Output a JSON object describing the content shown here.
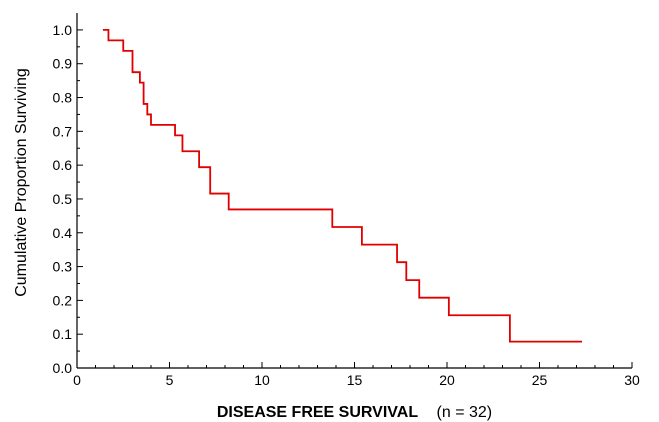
{
  "chart_data": {
    "type": "line",
    "step": true,
    "title": "",
    "xlabel": "DISEASE FREE SURVIVAL",
    "xlabel_note": "(n = 32)",
    "ylabel": "Cumulative Proportion Surviving",
    "xlim": [
      0,
      30
    ],
    "ylim": [
      0,
      1.05
    ],
    "xticks": [
      0,
      5,
      10,
      15,
      20,
      25,
      30
    ],
    "xtick_labels": [
      "0",
      "5",
      "10",
      "15",
      "20",
      "25",
      "30"
    ],
    "yticks": [
      0.0,
      0.1,
      0.2,
      0.3,
      0.4,
      0.5,
      0.6,
      0.7,
      0.8,
      0.9,
      1.0
    ],
    "ytick_labels": [
      "0.0",
      "0.1",
      "0.2",
      "0.3",
      "0.4",
      "0.5",
      "0.6",
      "0.7",
      "0.8",
      "0.9",
      "1.0"
    ],
    "grid": false,
    "series": [
      {
        "color": "#e00000",
        "x": [
          1.4,
          1.7,
          2.5,
          3.0,
          3.4,
          3.6,
          3.8,
          4.0,
          5.3,
          5.7,
          6.6,
          7.2,
          8.2,
          13.8,
          15.4,
          17.3,
          17.8,
          18.5,
          20.1,
          23.4,
          27.3
        ],
        "y": [
          1.0,
          0.969,
          0.938,
          0.875,
          0.844,
          0.781,
          0.75,
          0.719,
          0.688,
          0.641,
          0.594,
          0.516,
          0.469,
          0.417,
          0.365,
          0.313,
          0.26,
          0.208,
          0.156,
          0.078,
          0.078
        ]
      }
    ]
  }
}
